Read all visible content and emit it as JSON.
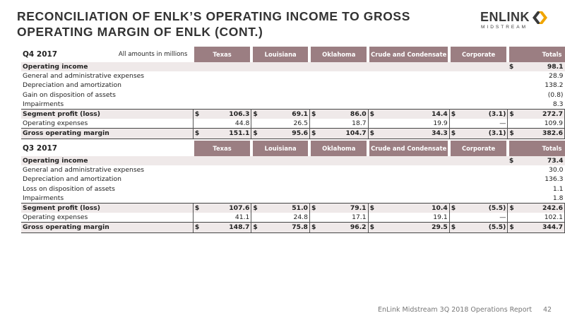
{
  "title": "RECONCILIATION OF ENLK’S OPERATING INCOME TO GROSS OPERATING MARGIN OF ENLK (CONT.)",
  "logo": {
    "word": "ENLINK",
    "sub": "MIDSTREAM",
    "icon": "enlink-chevron-logo"
  },
  "footer": {
    "report": "EnLink Midstream 3Q 2018 Operations Report",
    "page": "42"
  },
  "colors": {
    "header_bg": "#9b7e82",
    "shade_bg": "#efe9e9",
    "logo_accent": "#f0a500"
  },
  "columns": [
    "Texas",
    "Louisiana",
    "Oklahoma",
    "Crude and Condensate",
    "Corporate",
    "Totals"
  ],
  "tables": [
    {
      "period": "Q4 2017",
      "note": "All amounts in millions",
      "rows": [
        {
          "label": "Operating income",
          "type": "shade",
          "cells": [
            "",
            "",
            "",
            "",
            "",
            "98.1"
          ],
          "dollar": [
            false,
            false,
            false,
            false,
            false,
            true
          ]
        },
        {
          "label": "General and administrative expenses",
          "type": "plain",
          "cells": [
            "",
            "",
            "",
            "",
            "",
            "28.9"
          ],
          "dollar": [
            false,
            false,
            false,
            false,
            false,
            false
          ]
        },
        {
          "label": "Depreciation and amortization",
          "type": "plain",
          "cells": [
            "",
            "",
            "",
            "",
            "",
            "138.2"
          ],
          "dollar": [
            false,
            false,
            false,
            false,
            false,
            false
          ]
        },
        {
          "label": "Gain on disposition of assets",
          "type": "plain",
          "cells": [
            "",
            "",
            "",
            "",
            "",
            "(0.8)"
          ],
          "dollar": [
            false,
            false,
            false,
            false,
            false,
            false
          ]
        },
        {
          "label": "Impairments",
          "type": "plain",
          "cells": [
            "",
            "",
            "",
            "",
            "",
            "8.3"
          ],
          "dollar": [
            false,
            false,
            false,
            false,
            false,
            false
          ]
        },
        {
          "label": "Segment profit (loss)",
          "type": "shade-bordered",
          "cells": [
            "106.3",
            "69.1",
            "86.0",
            "14.4",
            "(3.1)",
            "272.7"
          ],
          "dollar": [
            true,
            true,
            true,
            true,
            true,
            true
          ]
        },
        {
          "label": "Operating expenses",
          "type": "bordered",
          "cells": [
            "44.8",
            "26.5",
            "18.7",
            "19.9",
            "—",
            "109.9"
          ],
          "dollar": [
            false,
            false,
            false,
            false,
            false,
            false
          ]
        },
        {
          "label": "Gross operating margin",
          "type": "shade-bordered-last",
          "cells": [
            "151.1",
            "95.6",
            "104.7",
            "34.3",
            "(3.1)",
            "382.6"
          ],
          "dollar": [
            true,
            true,
            true,
            true,
            true,
            true
          ]
        }
      ]
    },
    {
      "period": "Q3 2017",
      "note": "",
      "rows": [
        {
          "label": "Operating income",
          "type": "shade",
          "cells": [
            "",
            "",
            "",
            "",
            "",
            "73.4"
          ],
          "dollar": [
            false,
            false,
            false,
            false,
            false,
            true
          ]
        },
        {
          "label": "General and administrative expenses",
          "type": "plain",
          "cells": [
            "",
            "",
            "",
            "",
            "",
            "30.0"
          ],
          "dollar": [
            false,
            false,
            false,
            false,
            false,
            false
          ]
        },
        {
          "label": "Depreciation and amortization",
          "type": "plain",
          "cells": [
            "",
            "",
            "",
            "",
            "",
            "136.3"
          ],
          "dollar": [
            false,
            false,
            false,
            false,
            false,
            false
          ]
        },
        {
          "label": "Loss on disposition of assets",
          "type": "plain",
          "cells": [
            "",
            "",
            "",
            "",
            "",
            "1.1"
          ],
          "dollar": [
            false,
            false,
            false,
            false,
            false,
            false
          ]
        },
        {
          "label": "Impairments",
          "type": "plain",
          "cells": [
            "",
            "",
            "",
            "",
            "",
            "1.8"
          ],
          "dollar": [
            false,
            false,
            false,
            false,
            false,
            false
          ]
        },
        {
          "label": "Segment profit (loss)",
          "type": "shade-bordered",
          "cells": [
            "107.6",
            "51.0",
            "79.1",
            "10.4",
            "(5.5)",
            "242.6"
          ],
          "dollar": [
            true,
            true,
            true,
            true,
            true,
            true
          ]
        },
        {
          "label": "Operating expenses",
          "type": "bordered",
          "cells": [
            "41.1",
            "24.8",
            "17.1",
            "19.1",
            "—",
            "102.1"
          ],
          "dollar": [
            false,
            false,
            false,
            false,
            false,
            false
          ]
        },
        {
          "label": "Gross operating margin",
          "type": "shade-bordered-last",
          "cells": [
            "148.7",
            "75.8",
            "96.2",
            "29.5",
            "(5.5)",
            "344.7"
          ],
          "dollar": [
            true,
            true,
            true,
            true,
            true,
            true
          ]
        }
      ]
    }
  ]
}
